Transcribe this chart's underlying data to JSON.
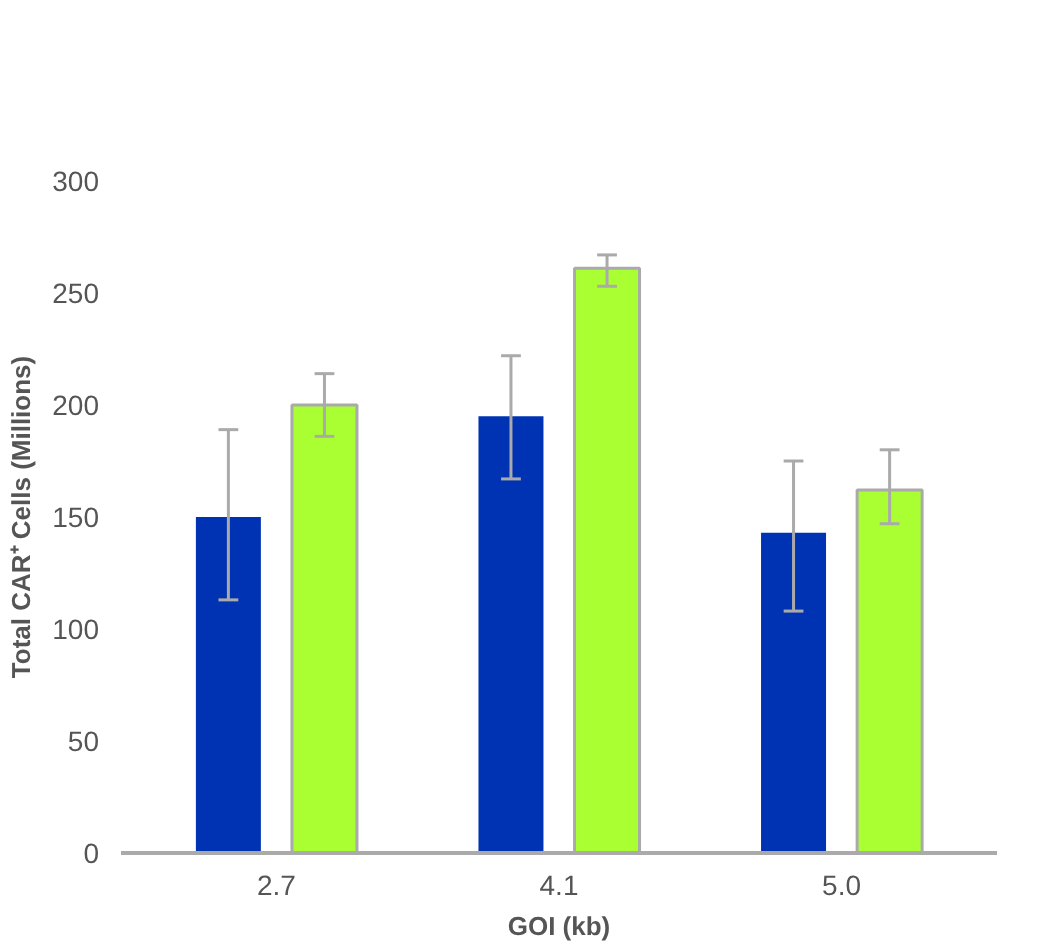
{
  "chart_data": {
    "type": "bar",
    "xlabel": "GOI (kb)",
    "ylabel": "Total CAR⁺ Cells (Millions)",
    "categories": [
      "2.7",
      "4.1",
      "5.0"
    ],
    "series": [
      {
        "color": "#0033b3",
        "values": [
          150,
          195,
          143
        ],
        "errors": [
          [
            113,
            189
          ],
          [
            167,
            222
          ],
          [
            108,
            175
          ]
        ]
      },
      {
        "color": "#aaff33",
        "values": [
          200,
          261,
          162
        ],
        "errors": [
          [
            186,
            214
          ],
          [
            253,
            267
          ],
          [
            147,
            180
          ]
        ]
      }
    ],
    "ylim": [
      0,
      300
    ],
    "yticks": [
      0,
      50,
      100,
      150,
      200,
      250,
      300
    ],
    "grid": false
  }
}
